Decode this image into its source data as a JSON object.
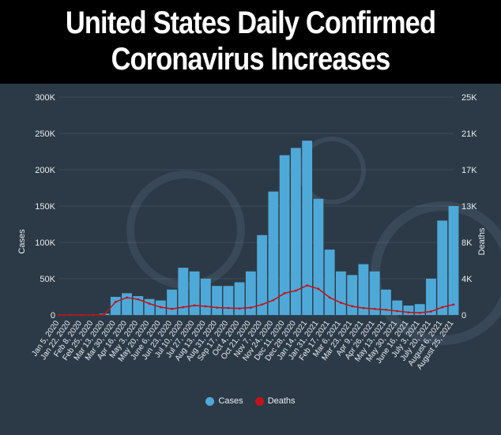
{
  "header": {
    "title_line1": "United States Daily Confirmed",
    "title_line2": "Coronavirus Increases"
  },
  "colors": {
    "background": "#2c3a47",
    "cases": "#4fa9d8",
    "deaths": "#c0141c",
    "text": "#e8edf2"
  },
  "legend": {
    "cases_label": "Cases",
    "deaths_label": "Deaths"
  },
  "chart_data": {
    "type": "bar",
    "title": "United States Daily Confirmed Coronavirus Increases",
    "ylabel_left": "Cases",
    "ylabel_right": "Deaths",
    "ylim_left": [
      0,
      300000
    ],
    "ylim_right": [
      0,
      25000
    ],
    "yticks_left": [
      "0",
      "50K",
      "100K",
      "150K",
      "200K",
      "250K",
      "300K"
    ],
    "yticks_right": [
      "0",
      "4K",
      "8K",
      "13K",
      "17K",
      "21K",
      "25K"
    ],
    "xticks": [
      "Jan 5, 2020",
      "Jan 22, 2020",
      "Feb 8, 2020",
      "Feb 25, 2020",
      "Mar 13, 2020",
      "Mar 30, 2020",
      "Apr 16, 2020",
      "May 3, 2020",
      "May 20, 2020",
      "June 6, 2020",
      "Jun 23, 2020",
      "Jul 10, 2020",
      "Jul 27, 2020",
      "Aug 13, 2020",
      "Aug 31, 2020",
      "Sep 17, 2020",
      "Oct 4, 2020",
      "Oct 21, 2020",
      "Nov 7, 2020",
      "Nov 24, 2020",
      "Dec 11, 2020",
      "Dec 28, 2020",
      "Jan 14, 2021",
      "Jan 31, 2021",
      "Feb 17, 2021",
      "Mar 6, 2021",
      "Mar 23, 2021",
      "Apr 9, 2021",
      "Apr 26, 2021",
      "May 13, 2021",
      "May 30, 2021",
      "June 16, 2021",
      "July 3, 2021",
      "July 20, 2021",
      "August 6, 2021",
      "August 25, 2021"
    ],
    "series": [
      {
        "name": "Cases",
        "kind": "bar",
        "axis": "left",
        "x": [
          "Jan 5, 2020",
          "Jan 22, 2020",
          "Feb 8, 2020",
          "Feb 25, 2020",
          "Mar 13, 2020",
          "Mar 30, 2020",
          "Apr 16, 2020",
          "May 3, 2020",
          "May 20, 2020",
          "June 6, 2020",
          "Jun 23, 2020",
          "Jul 10, 2020",
          "Jul 27, 2020",
          "Aug 13, 2020",
          "Aug 31, 2020",
          "Sep 17, 2020",
          "Oct 4, 2020",
          "Oct 21, 2020",
          "Nov 7, 2020",
          "Nov 24, 2020",
          "Dec 11, 2020",
          "Dec 28, 2020",
          "Jan 14, 2021",
          "Jan 31, 2021",
          "Feb 17, 2021",
          "Mar 6, 2021",
          "Mar 23, 2021",
          "Apr 9, 2021",
          "Apr 26, 2021",
          "May 13, 2021",
          "May 30, 2021",
          "June 16, 2021",
          "July 3, 2021",
          "July 20, 2021",
          "August 6, 2021",
          "August 25, 2021"
        ],
        "values": [
          0,
          0,
          0,
          0,
          2000,
          25000,
          30000,
          26000,
          22000,
          20000,
          35000,
          65000,
          60000,
          50000,
          40000,
          40000,
          45000,
          60000,
          110000,
          170000,
          220000,
          230000,
          240000,
          160000,
          90000,
          60000,
          55000,
          70000,
          60000,
          35000,
          20000,
          13000,
          15000,
          50000,
          130000,
          150000
        ]
      },
      {
        "name": "Deaths",
        "kind": "line",
        "axis": "right",
        "x": [
          "Jan 5, 2020",
          "Jan 22, 2020",
          "Feb 8, 2020",
          "Feb 25, 2020",
          "Mar 13, 2020",
          "Mar 30, 2020",
          "Apr 16, 2020",
          "May 3, 2020",
          "May 20, 2020",
          "June 6, 2020",
          "Jun 23, 2020",
          "Jul 10, 2020",
          "Jul 27, 2020",
          "Aug 13, 2020",
          "Aug 31, 2020",
          "Sep 17, 2020",
          "Oct 4, 2020",
          "Oct 21, 2020",
          "Nov 7, 2020",
          "Nov 24, 2020",
          "Dec 11, 2020",
          "Dec 28, 2020",
          "Jan 14, 2021",
          "Jan 31, 2021",
          "Feb 17, 2021",
          "Mar 6, 2021",
          "Mar 23, 2021",
          "Apr 9, 2021",
          "Apr 26, 2021",
          "May 13, 2021",
          "May 30, 2021",
          "June 16, 2021",
          "July 3, 2021",
          "July 20, 2021",
          "August 6, 2021",
          "August 25, 2021"
        ],
        "values": [
          0,
          0,
          0,
          0,
          50,
          1500,
          2000,
          1800,
          1300,
          900,
          700,
          900,
          1100,
          1000,
          850,
          800,
          750,
          850,
          1200,
          1700,
          2500,
          2800,
          3400,
          3000,
          2000,
          1400,
          1000,
          800,
          700,
          600,
          450,
          300,
          250,
          400,
          900,
          1200
        ]
      }
    ],
    "legend_position": "bottom-center"
  }
}
